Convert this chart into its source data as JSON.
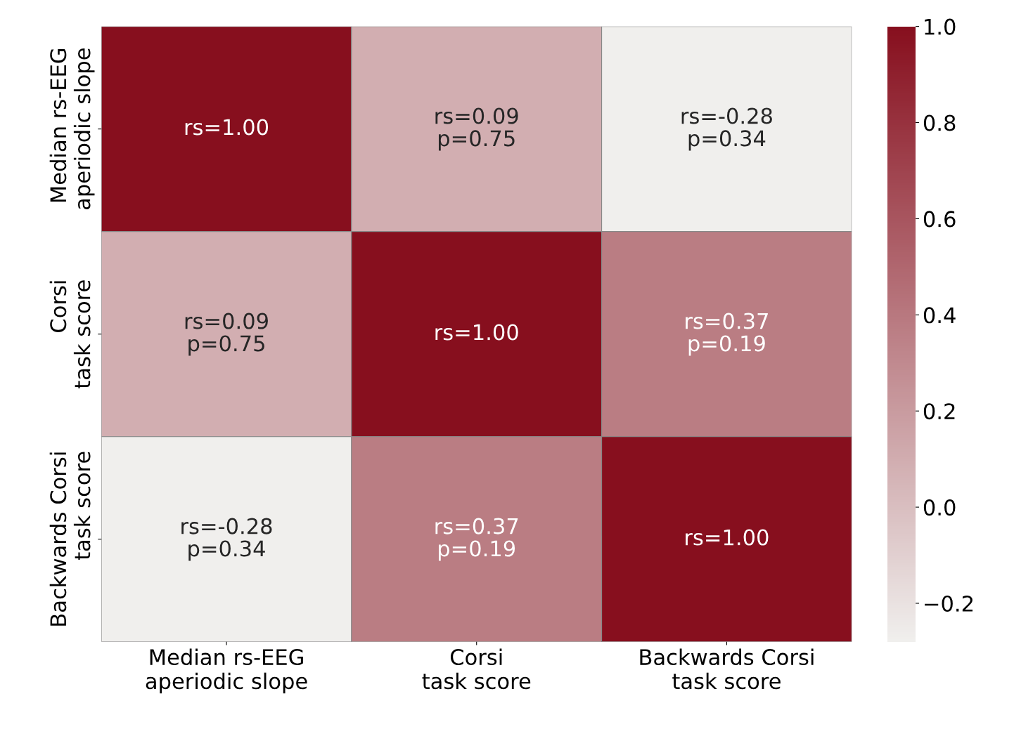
{
  "chart_data": {
    "type": "heatmap",
    "categories": [
      "Median rs-EEG\naperiodic slope",
      "Corsi\ntask score",
      "Backwards Corsi\ntask score"
    ],
    "y_categories": [
      "Median rs-EEG\naperiodic slope",
      "Corsi\ntask score",
      "Backwards Corsi\ntask score"
    ],
    "cells": [
      [
        1.0,
        0.09,
        -0.28
      ],
      [
        0.09,
        1.0,
        0.37
      ],
      [
        -0.28,
        0.37,
        1.0
      ]
    ],
    "cell_labels": [
      [
        "rs=1.00",
        "rs=0.09\np=0.75",
        "rs=-0.28\np=0.34"
      ],
      [
        "rs=0.09\np=0.75",
        "rs=1.00",
        "rs=0.37\np=0.19"
      ],
      [
        "rs=-0.28\np=0.34",
        "rs=0.37\np=0.19",
        "rs=1.00"
      ]
    ],
    "colors": [
      "#f0efed",
      "#870f1e"
    ],
    "clim": [
      -0.28,
      1.0
    ],
    "cticks": [
      {
        "value": -0.2,
        "label": "−0.2"
      },
      {
        "value": 0.0,
        "label": "0.0"
      },
      {
        "value": 0.2,
        "label": "0.2"
      },
      {
        "value": 0.4,
        "label": "0.4"
      },
      {
        "value": 0.6,
        "label": "0.6"
      },
      {
        "value": 0.8,
        "label": "0.8"
      },
      {
        "value": 1.0,
        "label": "1.0"
      }
    ]
  }
}
